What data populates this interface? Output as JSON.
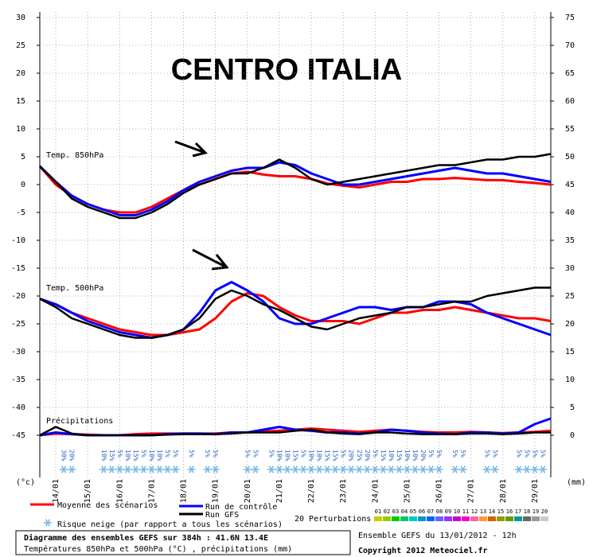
{
  "chart_data": {
    "type": "line",
    "title": "CENTRO ITALIA",
    "y_unit_label": "(°c)",
    "y2_unit_label": "(mm)",
    "grid": true,
    "xlim": [
      0,
      384
    ],
    "xticks": [
      {
        "value": 12,
        "label": "14/01"
      },
      {
        "value": 36,
        "label": "15/01"
      },
      {
        "value": 60,
        "label": "16/01"
      },
      {
        "value": 84,
        "label": "17/01"
      },
      {
        "value": 108,
        "label": "18/01"
      },
      {
        "value": 132,
        "label": "19/01"
      },
      {
        "value": 156,
        "label": "20/01"
      },
      {
        "value": 180,
        "label": "21/01"
      },
      {
        "value": 204,
        "label": "22/01"
      },
      {
        "value": 228,
        "label": "23/01"
      },
      {
        "value": 252,
        "label": "24/01"
      },
      {
        "value": 276,
        "label": "25/01"
      },
      {
        "value": 300,
        "label": "26/01"
      },
      {
        "value": 324,
        "label": "27/01"
      },
      {
        "value": 348,
        "label": "28/01"
      },
      {
        "value": 372,
        "label": "29/01"
      }
    ],
    "ylim": [
      -45,
      30
    ],
    "yticks": [
      -45,
      -40,
      -35,
      -30,
      -25,
      -20,
      -15,
      -10,
      -5,
      0,
      5,
      10,
      15,
      20,
      25,
      30
    ],
    "y2lim": [
      0,
      75
    ],
    "y2ticks": [
      0,
      5,
      10,
      15,
      20,
      25,
      30,
      35,
      40,
      45,
      50,
      55,
      60,
      65,
      70,
      75
    ],
    "x": [
      0,
      12,
      24,
      36,
      48,
      60,
      72,
      84,
      96,
      108,
      120,
      132,
      144,
      156,
      168,
      180,
      192,
      204,
      216,
      228,
      240,
      252,
      264,
      276,
      288,
      300,
      312,
      324,
      336,
      348,
      360,
      372,
      384
    ],
    "groups": [
      {
        "label": "Temp. 850hPa",
        "series": [
          {
            "name": "Moyenne des scénarios",
            "color": "#ff0000",
            "values": [
              3.3,
              0,
              -2,
              -3.5,
              -4.5,
              -5,
              -5,
              -4,
              -2.5,
              -1,
              0,
              1,
              2,
              2.3,
              1.8,
              1.5,
              1.5,
              1,
              0.2,
              -0.2,
              -0.5,
              0,
              0.5,
              0.5,
              1,
              1,
              1.2,
              1,
              0.8,
              0.8,
              0.5,
              0.3,
              0
            ]
          },
          {
            "name": "Run de contrôle",
            "color": "#0000ff",
            "values": [
              3.3,
              0.5,
              -2,
              -3.5,
              -4.5,
              -5.5,
              -5.5,
              -4.5,
              -3,
              -1,
              0.5,
              1.5,
              2.5,
              3,
              3,
              4,
              3.5,
              2,
              1,
              0,
              0,
              0.5,
              1,
              1.5,
              2,
              2.5,
              3,
              2.5,
              2,
              2,
              1.5,
              1,
              0.5
            ]
          },
          {
            "name": "Run GFS",
            "color": "#000000",
            "values": [
              3.3,
              0.5,
              -2.5,
              -4,
              -5,
              -6,
              -6,
              -5,
              -3.5,
              -1.5,
              0,
              1,
              2,
              2,
              3,
              4.5,
              3,
              1,
              0,
              0.5,
              1,
              1.5,
              2,
              2.5,
              3,
              3.5,
              3.5,
              4,
              4.5,
              4.5,
              5,
              5,
              5.5
            ]
          }
        ]
      },
      {
        "label": "Temp. 500hPa",
        "series": [
          {
            "name": "Moyenne des scénarios",
            "color": "#ff0000",
            "values": [
              -20.5,
              -21.5,
              -23,
              -24,
              -25,
              -26,
              -26.5,
              -27,
              -27,
              -26.5,
              -26,
              -24,
              -21,
              -19.5,
              -20,
              -22,
              -23.5,
              -24.5,
              -24.5,
              -24.5,
              -25,
              -24,
              -23,
              -23,
              -22.5,
              -22.5,
              -22,
              -22.5,
              -23,
              -23.5,
              -24,
              -24,
              -24.5
            ]
          },
          {
            "name": "Run de contrôle",
            "color": "#0000ff",
            "values": [
              -20.5,
              -21.5,
              -23,
              -24.5,
              -25.5,
              -26.5,
              -27,
              -27.5,
              -27,
              -26,
              -23,
              -19,
              -17.5,
              -19,
              -21,
              -24,
              -25,
              -25,
              -24,
              -23,
              -22,
              -22,
              -22.5,
              -22,
              -22,
              -21,
              -21,
              -21.5,
              -23,
              -24,
              -25,
              -26,
              -27
            ]
          },
          {
            "name": "Run GFS",
            "color": "#000000",
            "values": [
              -20.5,
              -22,
              -24,
              -25,
              -26,
              -27,
              -27.5,
              -27.5,
              -27,
              -26,
              -24,
              -20.5,
              -19,
              -20,
              -21.5,
              -22.5,
              -24,
              -25.5,
              -26,
              -25,
              -24,
              -23.5,
              -23,
              -22,
              -22,
              -21.5,
              -21,
              -21,
              -20,
              -19.5,
              -19,
              -18.5,
              -18.5
            ]
          }
        ]
      },
      {
        "label": "Précipitations",
        "series": [
          {
            "name": "Moyenne des scénarios",
            "color": "#ff0000",
            "axis": "y2",
            "values": [
              0,
              0.3,
              0.2,
              0.1,
              0,
              0,
              0.2,
              0.3,
              0.3,
              0.3,
              0.3,
              0.3,
              0.5,
              0.5,
              0.7,
              0.8,
              1,
              1.2,
              1,
              0.8,
              0.6,
              0.8,
              1,
              0.8,
              0.6,
              0.5,
              0.5,
              0.6,
              0.5,
              0.4,
              0.5,
              0.6,
              0.8
            ]
          },
          {
            "name": "Run de contrôle",
            "color": "#0000ff",
            "axis": "y2",
            "values": [
              0,
              0.5,
              0.2,
              0,
              0,
              0,
              0,
              0,
              0.2,
              0.3,
              0.3,
              0.2,
              0.5,
              0.5,
              1,
              1.5,
              1,
              0.8,
              0.5,
              0.5,
              0.3,
              0.5,
              1,
              0.8,
              0.5,
              0.3,
              0.2,
              0.5,
              0.5,
              0.3,
              0.5,
              2,
              3
            ]
          },
          {
            "name": "Run GFS",
            "color": "#000000",
            "axis": "y2",
            "values": [
              0,
              1.5,
              0.3,
              0,
              0,
              0,
              0,
              0,
              0.1,
              0.2,
              0.2,
              0.2,
              0.3,
              0.5,
              0.5,
              0.5,
              0.8,
              1,
              0.5,
              0.3,
              0.2,
              0.5,
              0.5,
              0.3,
              0.2,
              0.2,
              0.2,
              0.3,
              0.3,
              0.2,
              0.3,
              0.5,
              0.5
            ]
          }
        ]
      }
    ],
    "snow_risk": {
      "label": "Risque neige (par rapport a tous les scénarios)",
      "x": [
        18,
        24,
        48,
        54,
        60,
        66,
        72,
        78,
        84,
        90,
        96,
        102,
        114,
        126,
        132,
        156,
        162,
        174,
        180,
        186,
        192,
        198,
        204,
        210,
        216,
        222,
        228,
        234,
        240,
        246,
        252,
        258,
        264,
        270,
        276,
        282,
        288,
        294,
        300,
        312,
        318,
        336,
        342,
        360,
        366,
        372,
        378
      ],
      "values": [
        30,
        20,
        10,
        15,
        5,
        10,
        15,
        5,
        10,
        10,
        5,
        5,
        5,
        5,
        5,
        5,
        5,
        5,
        10,
        10,
        15,
        5,
        10,
        10,
        15,
        15,
        5,
        20,
        25,
        20,
        5,
        15,
        10,
        15,
        10,
        10,
        20,
        5,
        5,
        5,
        5,
        5,
        5,
        5,
        5,
        5,
        5
      ],
      "value_labels": [
        "30%",
        "20%",
        "10%",
        "15%",
        "5%",
        "10%",
        "15%",
        "5%",
        "10%",
        "10%",
        "5%",
        "5%",
        "5%",
        "5%",
        "5%",
        "5%",
        "5%",
        "5%",
        "10%",
        "10%",
        "15%",
        "5%",
        "10%",
        "10%",
        "15%",
        "15%",
        "5%",
        "20%",
        "25%",
        "20%",
        "5%",
        "15%",
        "10%",
        "15%",
        "10%",
        "10%",
        "20%",
        "5%",
        "5%",
        "5%",
        "5%",
        "5%",
        "5%",
        "5%",
        "5%",
        "5%",
        "5%"
      ]
    },
    "perturbations": {
      "label": "20 Perturbations",
      "names": [
        "01",
        "02",
        "03",
        "04",
        "05",
        "06",
        "07",
        "08",
        "09",
        "10",
        "11",
        "12",
        "13",
        "14",
        "15",
        "16",
        "17",
        "18",
        "19",
        "20"
      ],
      "colors": [
        "#cccc00",
        "#99cc00",
        "#00cc00",
        "#00cc66",
        "#00cccc",
        "#0099cc",
        "#0066ff",
        "#6666ff",
        "#9933ff",
        "#cc00cc",
        "#ff00cc",
        "#ff6699",
        "#ff9933",
        "#cc6600",
        "#999900",
        "#669900",
        "#009999",
        "#666666",
        "#999999",
        "#cccccc"
      ]
    },
    "footer": {
      "title": "Diagramme des ensembles GEFS sur 384h : 41.6N 13.4E",
      "subtitle": "Températures 850hPa et 500hPa (°C) , précipitations (mm)",
      "run": "Ensemble GEFS du 13/01/2012 - 12h",
      "copyright": "Copyright 2012 Meteociel.fr"
    }
  }
}
